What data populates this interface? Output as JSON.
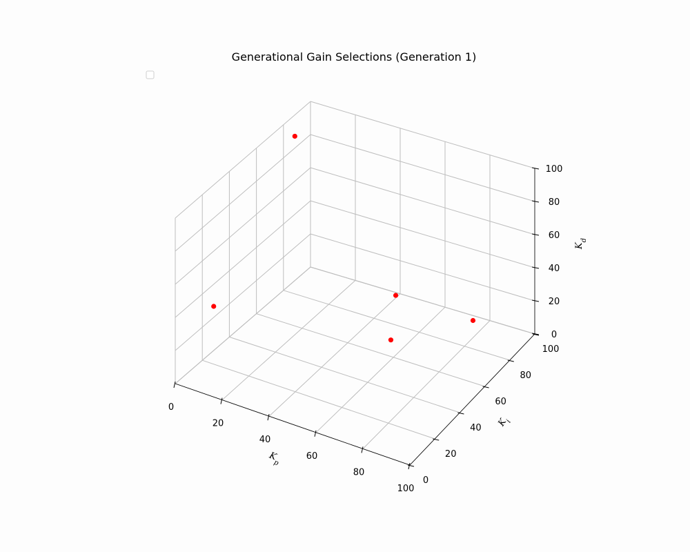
{
  "chart_data": {
    "type": "scatter",
    "projection": "3d",
    "title": "Generational Gain Selections (Generation 1)",
    "xlabel": "K_p",
    "ylabel": "K_i",
    "zlabel": "K_d",
    "xlim": [
      0,
      100
    ],
    "ylim": [
      0,
      100
    ],
    "zlim": [
      0,
      100
    ],
    "x_ticks": [
      "0",
      "20",
      "40",
      "60",
      "80",
      "100"
    ],
    "y_ticks": [
      "0",
      "20",
      "40",
      "60",
      "80",
      "100"
    ],
    "z_ticks": [
      "0",
      "20",
      "40",
      "60",
      "80",
      "100"
    ],
    "grid": true,
    "legend": {
      "placement": "top-left",
      "entries": []
    },
    "series": [
      {
        "color": "#ff0000",
        "points": [
          {
            "x": 8,
            "y": 75,
            "z": 100
          },
          {
            "x": 2,
            "y": 25,
            "z": 30
          },
          {
            "x": 45,
            "y": 88,
            "z": 10
          },
          {
            "x": 77,
            "y": 92,
            "z": 5
          },
          {
            "x": 60,
            "y": 58,
            "z": 12
          }
        ]
      }
    ]
  }
}
